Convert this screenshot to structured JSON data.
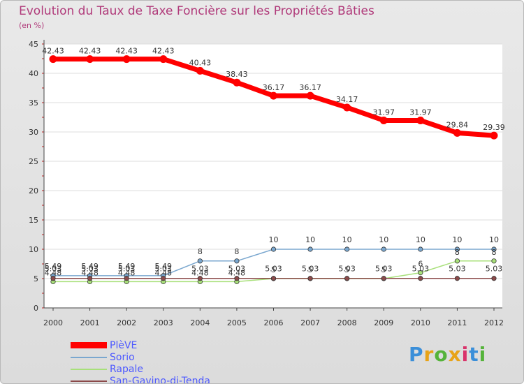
{
  "title": "Evolution du Taux de Taxe Foncière sur les Propriétés Bâties",
  "subtitle": "(en %)",
  "logo": {
    "text": "Proxiti",
    "colors": [
      "#3b8fd9",
      "#e8a317",
      "#55b33a",
      "#e8a317",
      "#d9336b",
      "#3b8fd9",
      "#55b33a"
    ]
  },
  "colors": {
    "PlèVE": "#ff0000",
    "Sorio": "#7aa7cf",
    "Rapale": "#a8e07a",
    "San-Gavino-di-Tenda": "#8b4a4a"
  },
  "chart_data": {
    "type": "line",
    "ylim": [
      0,
      45
    ],
    "yticks": [
      0,
      5,
      10,
      15,
      20,
      25,
      30,
      35,
      40,
      45
    ],
    "x": [
      "2000",
      "2001",
      "2002",
      "2003",
      "2004",
      "2005",
      "2006",
      "2007",
      "2008",
      "2009",
      "2010",
      "2011",
      "2012"
    ],
    "series": [
      {
        "name": "PlèVE",
        "values": [
          42.43,
          42.43,
          42.43,
          42.43,
          40.43,
          38.43,
          36.17,
          36.17,
          34.17,
          31.97,
          31.97,
          29.84,
          29.39
        ],
        "labels": [
          "42.43",
          "42.43",
          "42.43",
          "42.43",
          "40.43",
          "38.43",
          "36.17",
          "36.17",
          "34.17",
          "31.97",
          "31.97",
          "29.84",
          "29.39"
        ]
      },
      {
        "name": "Sorio",
        "values": [
          5.49,
          5.49,
          5.49,
          5.49,
          8,
          8,
          10,
          10,
          10,
          10,
          10,
          10,
          10
        ],
        "labels": [
          "5.49",
          "5.49",
          "5.49",
          "5.49",
          "8",
          "8",
          "10",
          "10",
          "10",
          "10",
          "10",
          "10",
          "10"
        ]
      },
      {
        "name": "Rapale",
        "values": [
          4.48,
          4.48,
          4.48,
          4.48,
          4.48,
          4.48,
          5,
          5,
          5,
          5,
          6,
          8,
          8
        ],
        "labels": [
          "4.48",
          "4.48",
          "4.48",
          "4.48",
          "4.48",
          "4.48",
          "5",
          "5",
          "5",
          "5",
          "6",
          "8",
          "8"
        ]
      },
      {
        "name": "San-Gavino-di-Tenda",
        "values": [
          5.03,
          5.03,
          5.03,
          5.03,
          5.03,
          5.03,
          5.03,
          5.03,
          5.03,
          5.03,
          5.03,
          5.03,
          5.03
        ],
        "labels": [
          "5.03",
          "5.03",
          "5.03",
          "5.03",
          "5.03",
          "5.03",
          "5.03",
          "5.03",
          "5.03",
          "5.03",
          "5.03",
          "5.03",
          "5.03"
        ]
      }
    ]
  }
}
